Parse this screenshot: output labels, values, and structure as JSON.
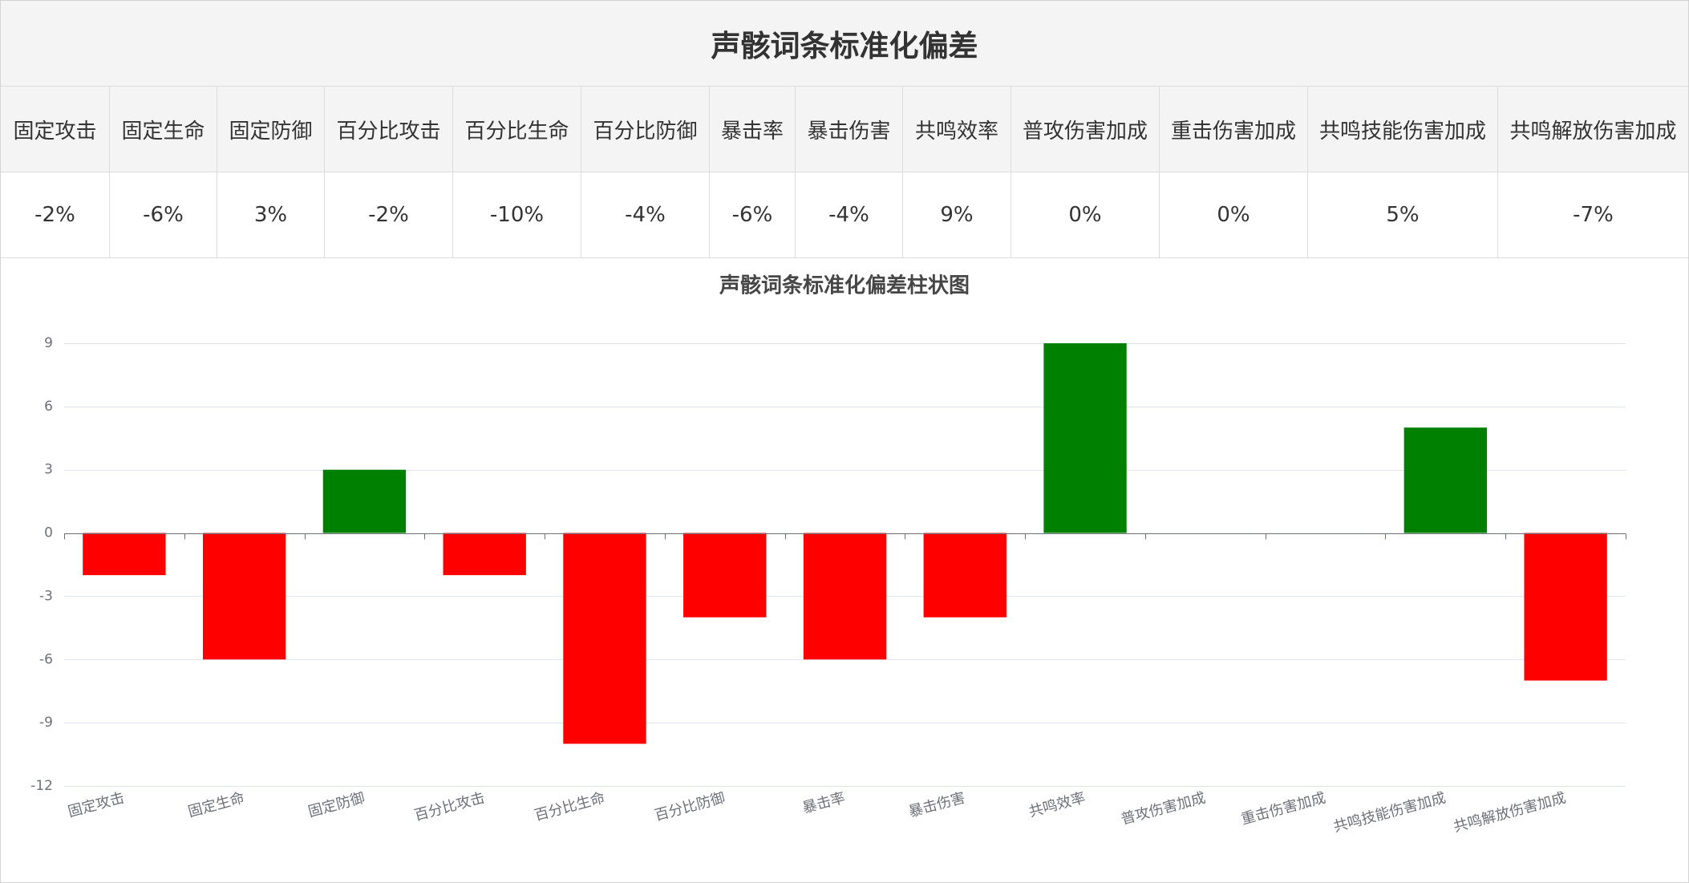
{
  "title": "声骸词条标准化偏差",
  "table": {
    "headers": [
      "固定攻击",
      "固定生命",
      "固定防御",
      "百分比攻击",
      "百分比生命",
      "百分比防御",
      "暴击率",
      "暴击伤害",
      "共鸣效率",
      "普攻伤害加成",
      "重击伤害加成",
      "共鸣技能伤害加成",
      "共鸣解放伤害加成"
    ],
    "values": [
      "-2%",
      "-6%",
      "3%",
      "-2%",
      "-10%",
      "-4%",
      "-6%",
      "-4%",
      "9%",
      "0%",
      "0%",
      "5%",
      "-7%"
    ]
  },
  "chart_data": {
    "type": "bar",
    "title": "声骸词条标准化偏差柱状图",
    "categories": [
      "固定攻击",
      "固定生命",
      "固定防御",
      "百分比攻击",
      "百分比生命",
      "百分比防御",
      "暴击率",
      "暴击伤害",
      "共鸣效率",
      "普攻伤害加成",
      "重击伤害加成",
      "共鸣技能伤害加成",
      "共鸣解放伤害加成"
    ],
    "values": [
      -2,
      -6,
      3,
      -2,
      -10,
      -4,
      -6,
      -4,
      9,
      0,
      0,
      5,
      -7
    ],
    "xlabel": "",
    "ylabel": "",
    "ylim": [
      -12,
      9
    ],
    "yticks": [
      9,
      6,
      3,
      0,
      -3,
      -6,
      -9,
      -12
    ],
    "grid": true,
    "colors": {
      "positive": "#008000",
      "negative": "#ff0000"
    }
  }
}
